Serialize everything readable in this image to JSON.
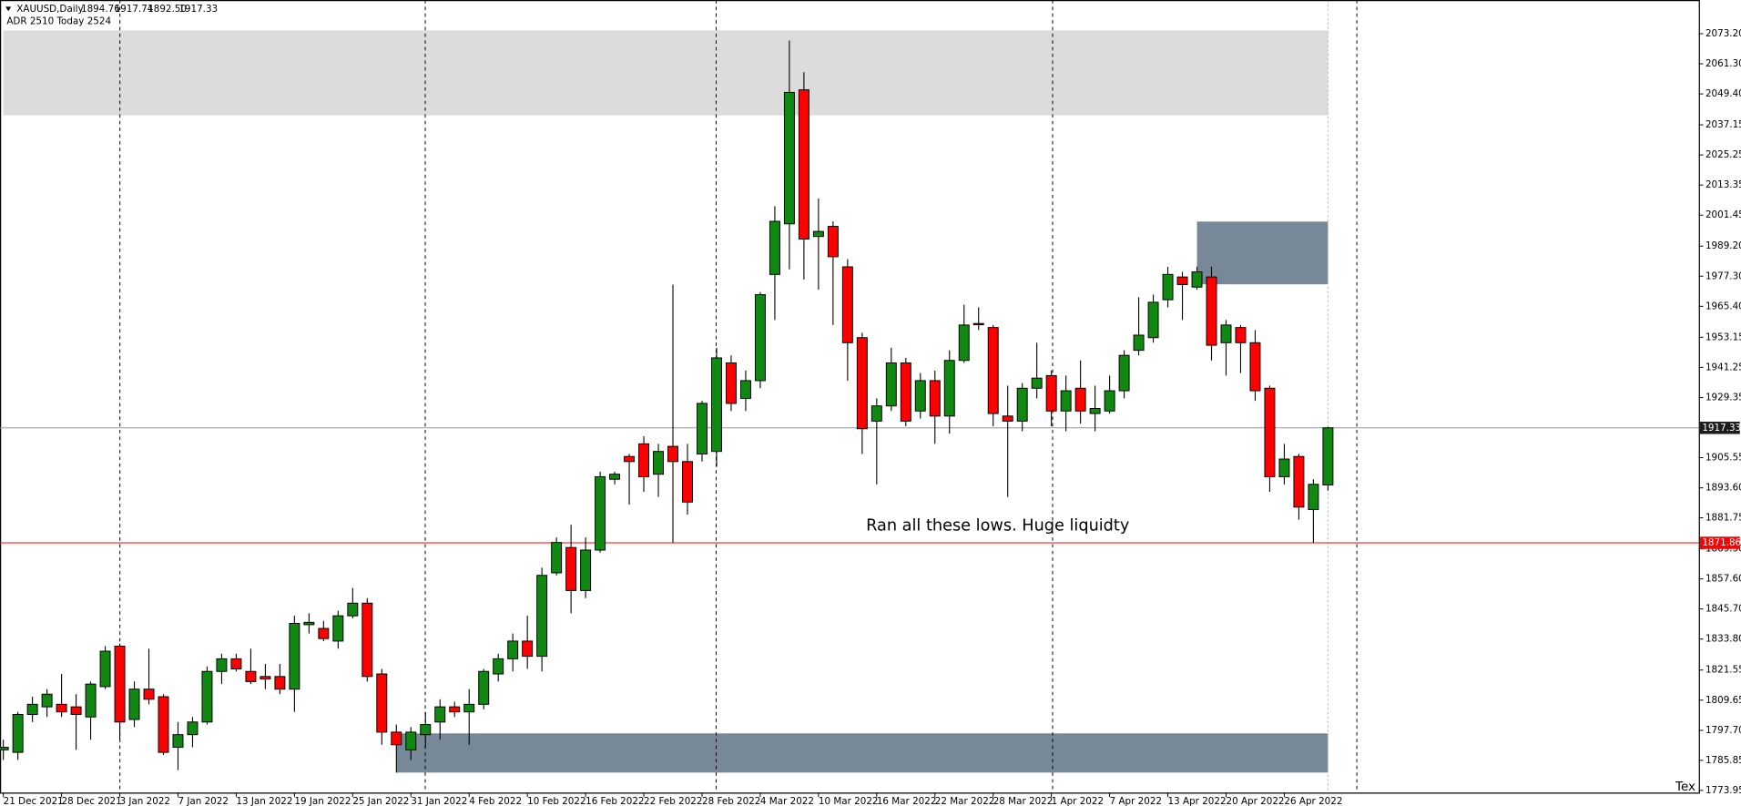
{
  "chart_data": {
    "type": "candlestick",
    "title": "XAUUSD,Daily",
    "ohlc_labels": [
      "1894.76",
      "1917.74",
      "1892.50",
      "1917.33"
    ],
    "indicator": "ADR 2510  Today 2524",
    "annotation": "Ran all these lows.  Huge liquidty",
    "corner_text": "Tex",
    "up_color": "#118811",
    "down_color": "#ff0000",
    "categories": [
      "21 Dec 2021",
      null,
      null,
      null,
      "28 Dec 2021",
      null,
      null,
      null,
      "3 Jan 2022",
      null,
      null,
      null,
      "7 Jan 2022",
      null,
      null,
      null,
      "13 Jan 2022",
      null,
      null,
      null,
      "19 Jan 2022",
      null,
      null,
      null,
      "25 Jan 2022",
      null,
      null,
      null,
      "31 Jan 2022",
      null,
      null,
      null,
      "4 Feb 2022",
      null,
      null,
      null,
      "10 Feb 2022",
      null,
      null,
      null,
      "16 Feb 2022",
      null,
      null,
      null,
      "22 Feb 2022",
      null,
      null,
      null,
      "28 Feb 2022",
      null,
      null,
      null,
      "4 Mar 2022",
      null,
      null,
      null,
      "10 Mar 2022",
      null,
      null,
      null,
      "16 Mar 2022",
      null,
      null,
      null,
      "22 Mar 2022",
      null,
      null,
      null,
      "28 Mar 2022",
      null,
      null,
      null,
      "1 Apr 2022",
      null,
      null,
      null,
      "7 Apr 2022",
      null,
      null,
      null,
      "13 Apr 2022",
      null,
      null,
      null,
      "20 Apr 2022",
      null,
      null,
      null,
      "26 Apr 2022",
      null,
      null,
      null
    ],
    "open": [
      1790,
      1789,
      1804,
      1807,
      1808,
      1807,
      1803,
      1815,
      1831,
      1802,
      1814,
      1811,
      1791,
      1796,
      1801,
      1821,
      1826,
      1821,
      1819,
      1819,
      1814,
      1839.5,
      1838,
      1833,
      1843,
      1848,
      1820,
      1797,
      1790,
      1796,
      1801,
      1807,
      1805,
      1808,
      1820,
      1826,
      1833,
      1827,
      1860,
      1870,
      1853,
      1869,
      1897,
      1906,
      1911,
      1899,
      1910,
      1904,
      1907,
      1908,
      1943,
      1929,
      1936,
      1978,
      1998,
      2051,
      1993,
      1997,
      1981,
      1953,
      1920,
      1926,
      1943,
      1924,
      1936,
      1922,
      1944,
      1958.6,
      1957,
      1922,
      1920,
      1933,
      1938,
      1924,
      1933,
      1923,
      1924,
      1932,
      1948,
      1953,
      1968,
      1977,
      1973,
      1977,
      1951,
      1957,
      1951,
      1933,
      1898,
      1906,
      1885,
      1894.76
    ],
    "high": [
      1794,
      1805,
      1811,
      1814,
      1820,
      1812,
      1817,
      1831,
      1832,
      1817,
      1830,
      1812,
      1801,
      1803,
      1823,
      1828,
      1828,
      1830,
      1824,
      1824,
      1843,
      1844,
      1841,
      1845,
      1854,
      1850,
      1822,
      1800,
      1799,
      1805,
      1810,
      1809,
      1814,
      1822,
      1828,
      1836,
      1843,
      1862,
      1874,
      1879,
      1874,
      1900,
      1900,
      1907,
      1914,
      1911,
      1974,
      1911,
      1928,
      1949,
      1946,
      1940,
      1971,
      2005,
      2070.5,
      2058,
      2008,
      1999,
      1984,
      1955,
      1929,
      1949,
      1945,
      1939,
      1940,
      1948,
      1966,
      1965,
      1958,
      1934,
      1935,
      1951,
      1940,
      1938,
      1944,
      1934,
      1938,
      1948,
      1969,
      1970,
      1981,
      1979,
      1981,
      1981,
      1960,
      1958,
      1956,
      1934,
      1911,
      1907,
      1897,
      1917.74
    ],
    "low": [
      1786,
      1786,
      1801,
      1803,
      1803,
      1790,
      1794,
      1814,
      1794,
      1799,
      1808,
      1788,
      1782,
      1791,
      1800,
      1816,
      1821,
      1816,
      1814,
      1812,
      1805,
      1836,
      1833,
      1830,
      1842,
      1817,
      1792,
      1781,
      1786,
      1791,
      1794,
      1803,
      1792,
      1806,
      1817,
      1821,
      1822,
      1821,
      1859,
      1844,
      1850,
      1868,
      1895,
      1887,
      1892,
      1890,
      1872,
      1883,
      1904,
      1902,
      1924,
      1924,
      1933,
      1960,
      1980,
      1976,
      1972,
      1958,
      1936,
      1907,
      1895,
      1924,
      1918,
      1921,
      1911,
      1915,
      1943,
      1956,
      1918,
      1890,
      1916,
      1929,
      1918,
      1916,
      1919,
      1916,
      1923,
      1929,
      1946,
      1951,
      1965,
      1960,
      1972,
      1944,
      1938,
      1939,
      1928,
      1892,
      1895,
      1881,
      1871.9,
      1892.5
    ],
    "close": [
      1791,
      1804,
      1808,
      1812,
      1805,
      1804,
      1816,
      1829,
      1801,
      1814,
      1810,
      1789,
      1796,
      1801,
      1821,
      1826,
      1822,
      1817,
      1818,
      1814,
      1840,
      1840.4,
      1834,
      1843,
      1848,
      1819,
      1797,
      1792,
      1797,
      1800,
      1807,
      1805,
      1808,
      1821,
      1826,
      1833,
      1827,
      1859,
      1872,
      1853,
      1869,
      1898,
      1899,
      1904,
      1898,
      1908,
      1904,
      1888,
      1927,
      1945,
      1927,
      1936,
      1970,
      1999,
      2050,
      1992,
      1995,
      1985,
      1951,
      1917,
      1926,
      1943,
      1920,
      1936,
      1922,
      1944,
      1958,
      1958.1,
      1923,
      1920,
      1933,
      1937,
      1924,
      1932,
      1924,
      1925,
      1932,
      1946,
      1954,
      1967,
      1978,
      1974,
      1979,
      1950,
      1958,
      1951,
      1932,
      1898,
      1905,
      1886,
      1895,
      1917.33
    ],
    "ylim": [
      1773.1,
      2085.2
    ],
    "yticks": [
      {
        "value": 2073.2,
        "label": "2073.20"
      },
      {
        "value": 2061.3,
        "label": "2061.30"
      },
      {
        "value": 2049.4,
        "label": "2049.40"
      },
      2037.15,
      2025.25,
      2013.35,
      2001.45,
      {
        "value": 1989.2,
        "label": "1989.20"
      },
      {
        "value": 1977.3,
        "label": "1977.30"
      },
      {
        "value": 1965.4,
        "label": "1965.40"
      },
      1953.15,
      1941.25,
      1929.35,
      1905.55,
      {
        "value": 1893.6,
        "label": "1893.60"
      },
      1881.75,
      {
        "value": 1869.5,
        "label": "1869.50"
      },
      {
        "value": 1857.6,
        "label": "1857.60"
      },
      {
        "value": 1845.7,
        "label": "1845.70"
      },
      {
        "value": 1833.8,
        "label": "1833.80"
      },
      1821.55,
      1809.65,
      {
        "value": 1797.7,
        "label": "1797.70"
      },
      1785.85,
      1773.95
    ],
    "hlines": [
      {
        "value": 1917.33,
        "color": "#7f9bb5",
        "label_bg": "#1c1c1c"
      },
      {
        "value": 1871.86,
        "color": "#ff0000",
        "label_bg": "#ff0000"
      }
    ],
    "zones": [
      {
        "start": 0,
        "end": 91,
        "top": 2074.5,
        "bottom": 2040.9,
        "color": "#dcdcdc"
      },
      {
        "start": 82,
        "end": 91,
        "top": 1998.9,
        "bottom": 1974.1,
        "color": "#778899"
      },
      {
        "start": 27,
        "end": 91,
        "top": 1796.5,
        "bottom": 1781,
        "color": "#778899"
      }
    ]
  }
}
